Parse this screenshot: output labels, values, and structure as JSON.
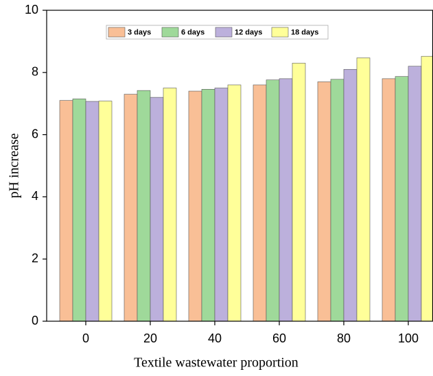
{
  "chart_data": {
    "type": "bar",
    "x_label": "Textile wastewater proportion",
    "y_label": "pH increase",
    "categories": [
      "0",
      "20",
      "40",
      "60",
      "80",
      "100"
    ],
    "series": [
      {
        "name": "3 days",
        "color": "#f9bf96",
        "values": [
          7.1,
          7.3,
          7.4,
          7.6,
          7.7,
          7.8
        ]
      },
      {
        "name": "6 days",
        "color": "#9fd99a",
        "values": [
          7.15,
          7.42,
          7.46,
          7.76,
          7.78,
          7.87
        ]
      },
      {
        "name": "12 days",
        "color": "#bcb0dc",
        "values": [
          7.07,
          7.2,
          7.5,
          7.8,
          8.1,
          8.2
        ]
      },
      {
        "name": "18 days",
        "color": "#ffff99",
        "values": [
          7.08,
          7.5,
          7.6,
          8.3,
          8.47,
          8.52
        ]
      }
    ],
    "ylim": [
      0,
      10
    ],
    "yticks": [
      0,
      2,
      4,
      6,
      8,
      10
    ]
  }
}
